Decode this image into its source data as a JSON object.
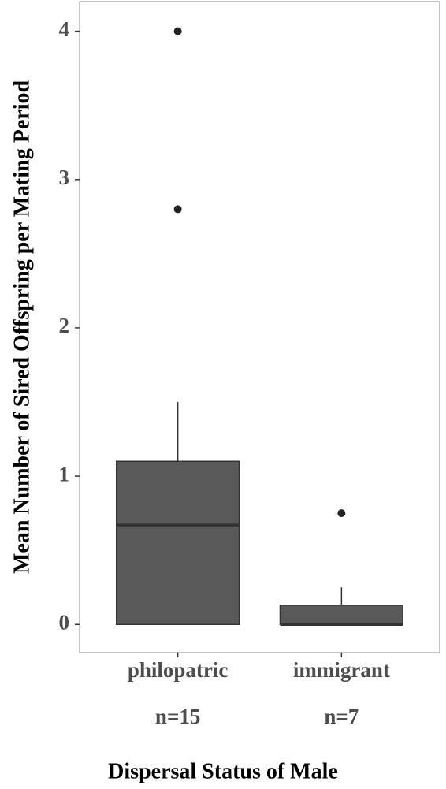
{
  "chart_data": {
    "type": "box",
    "x_label": "Dispersal Status of Male",
    "y_label": "Mean Number of Sired Offspring per Mating Period",
    "categories": [
      "philopatric",
      "immigrant"
    ],
    "sample_sizes": [
      "n=15",
      "n=7"
    ],
    "boxes": [
      {
        "whislo": 0,
        "q1": 0,
        "median": 0.67,
        "q3": 1.1,
        "whishi": 1.5,
        "fliers": [
          4,
          2.8
        ]
      },
      {
        "whislo": 0,
        "q1": 0,
        "median": 0,
        "q3": 0.13,
        "whishi": 0.25,
        "fliers": [
          0.75
        ]
      }
    ],
    "color": "#595959",
    "ylim": [
      -0.19,
      4.2
    ],
    "yticks": [
      0,
      1,
      2,
      3,
      4
    ]
  }
}
